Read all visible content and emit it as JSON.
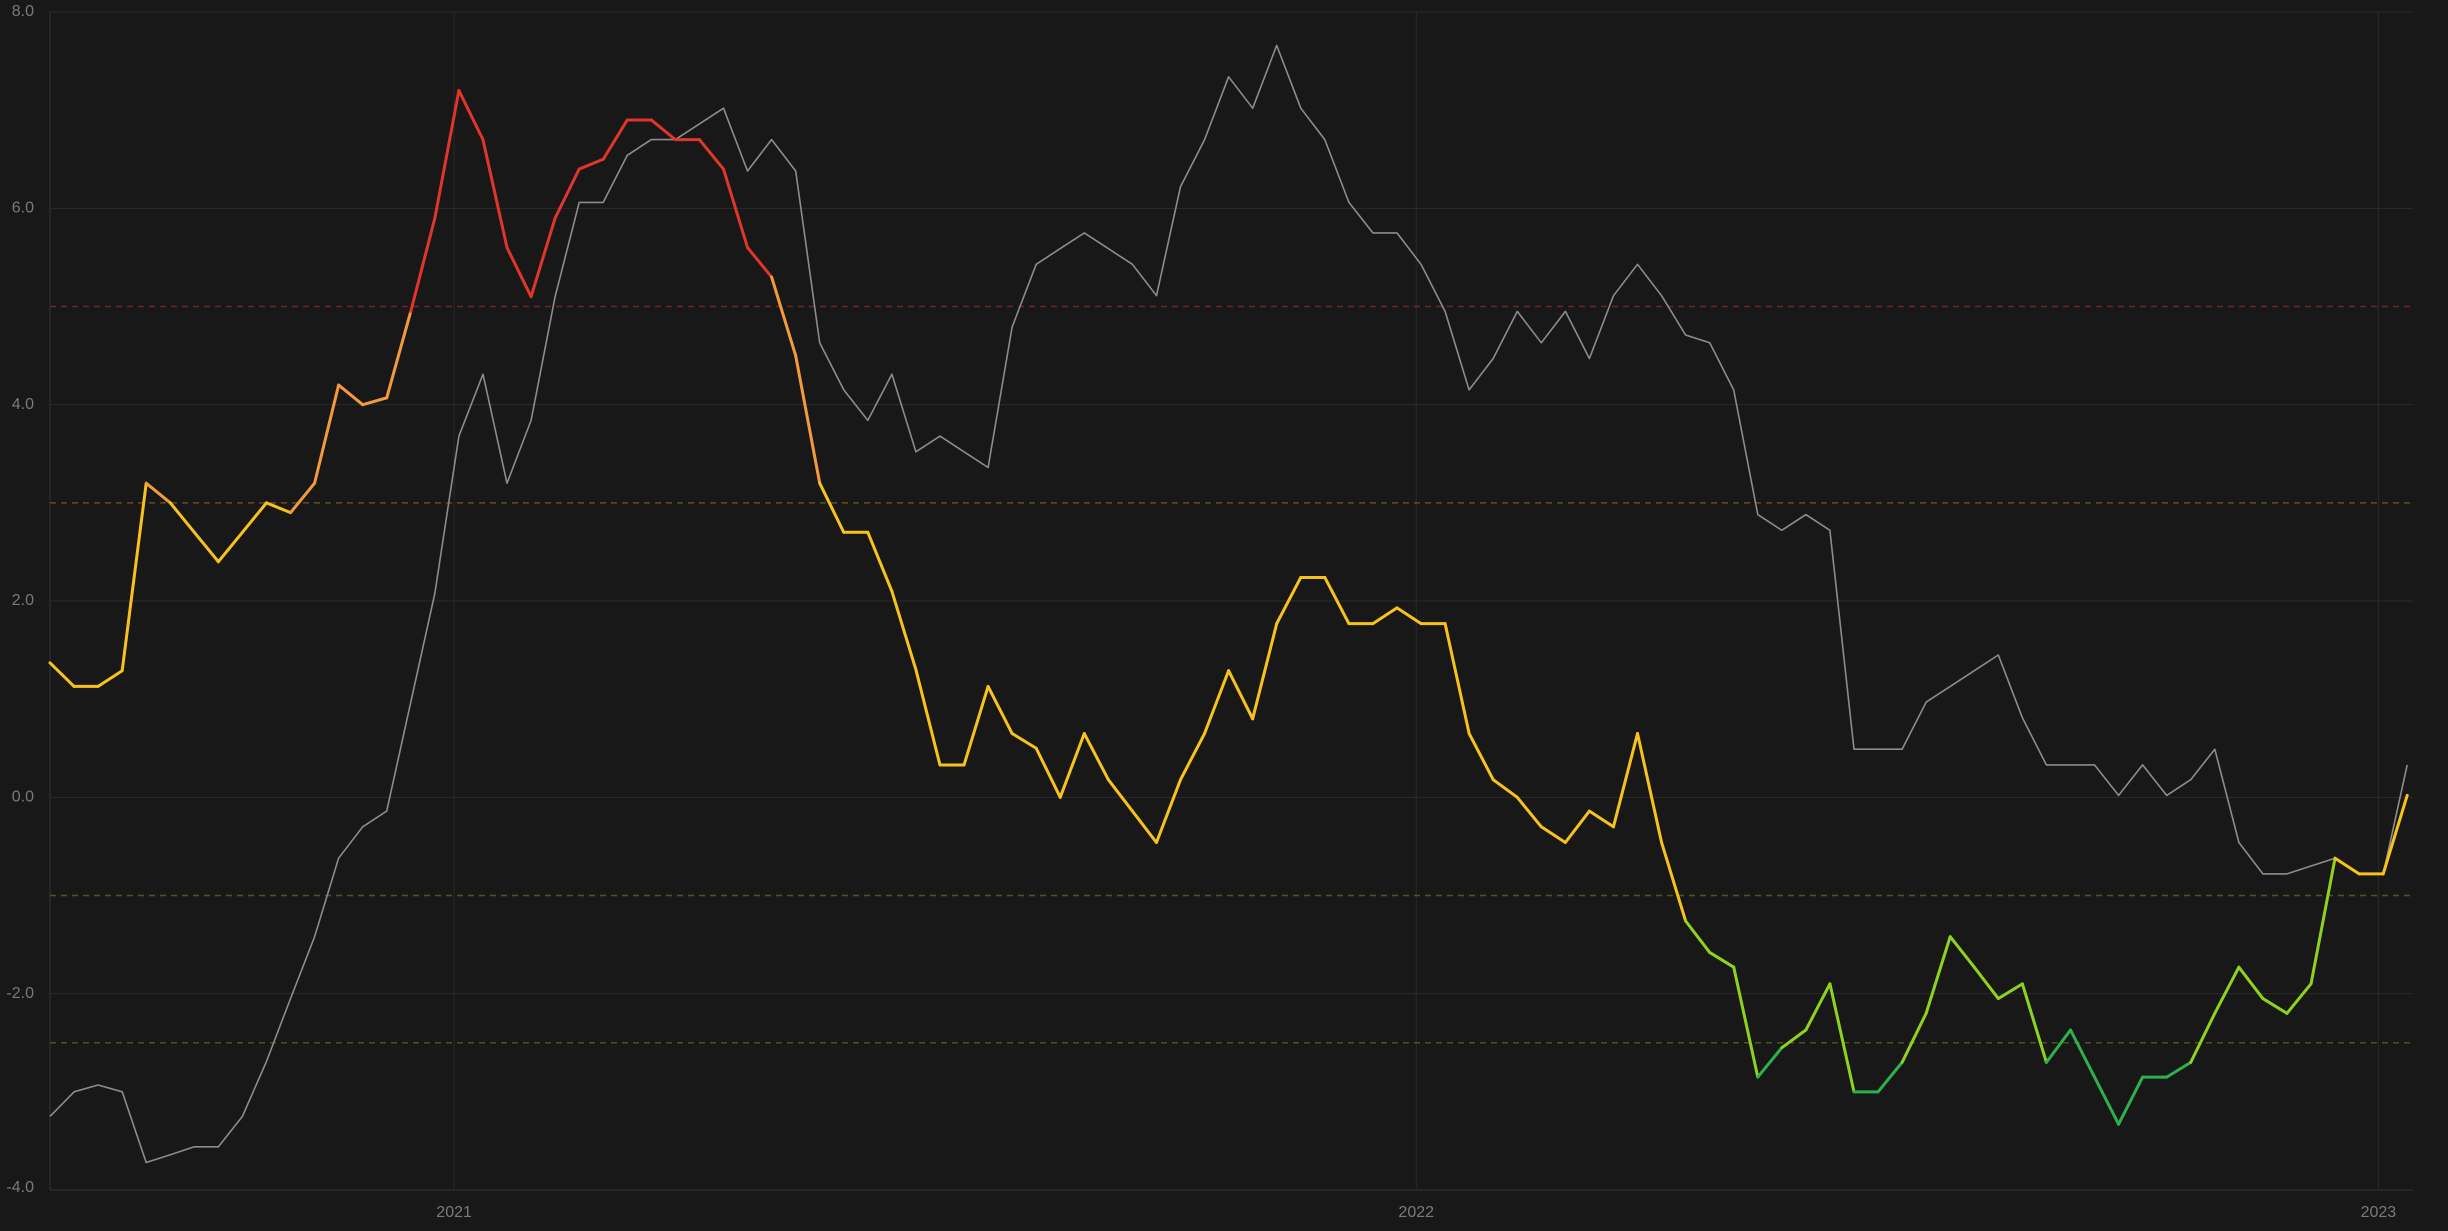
{
  "chart_data": {
    "type": "line",
    "background": "#181818",
    "grid": true,
    "x": [
      2020.58,
      2020.605,
      2020.63,
      2020.655,
      2020.68,
      2020.705,
      2020.73,
      2020.755,
      2020.78,
      2020.805,
      2020.83,
      2020.855,
      2020.88,
      2020.905,
      2020.93,
      2020.955,
      2020.98,
      2021.005,
      2021.03,
      2021.055,
      2021.08,
      2021.105,
      2021.13,
      2021.155,
      2021.18,
      2021.205,
      2021.23,
      2021.255,
      2021.28,
      2021.305,
      2021.33,
      2021.355,
      2021.38,
      2021.405,
      2021.43,
      2021.455,
      2021.48,
      2021.505,
      2021.53,
      2021.555,
      2021.58,
      2021.605,
      2021.63,
      2021.655,
      2021.68,
      2021.705,
      2021.73,
      2021.755,
      2021.78,
      2021.805,
      2021.83,
      2021.855,
      2021.88,
      2021.905,
      2021.93,
      2021.955,
      2021.98,
      2022.005,
      2022.03,
      2022.055,
      2022.08,
      2022.105,
      2022.13,
      2022.155,
      2022.18,
      2022.205,
      2022.23,
      2022.255,
      2022.28,
      2022.305,
      2022.33,
      2022.355,
      2022.38,
      2022.405,
      2022.43,
      2022.455,
      2022.48,
      2022.505,
      2022.53,
      2022.555,
      2022.58,
      2022.605,
      2022.63,
      2022.655,
      2022.68,
      2022.705,
      2022.73,
      2022.755,
      2022.78,
      2022.805,
      2022.83,
      2022.855,
      2022.88,
      2022.905,
      2022.93,
      2022.955,
      2022.98,
      2023.005,
      2023.03
    ],
    "xlim": [
      2020.58,
      2023.036
    ],
    "xticks": [
      2021,
      2022,
      2023
    ],
    "ylim": [
      -4,
      8
    ],
    "yticks": [
      {
        "value": -4,
        "label": "-4.0"
      },
      {
        "value": -2,
        "label": "-2.0"
      },
      {
        "value": 0,
        "label": "0.0"
      },
      {
        "value": 2,
        "label": "2.0"
      },
      {
        "value": 4,
        "label": "4.0"
      },
      {
        "value": 6,
        "label": "6.0"
      },
      {
        "value": 8,
        "label": "8.0"
      }
    ],
    "reference_lines": [
      {
        "value": 5,
        "color": "#6e2424"
      },
      {
        "value": 3,
        "color": "#6b4722"
      },
      {
        "value": -1,
        "color": "#5c4f1f"
      },
      {
        "value": -2.5,
        "color": "#4b5220"
      }
    ],
    "series": [
      {
        "color": "#8c8c8c",
        "values": [
          -3.25,
          -3.0,
          -2.93,
          -3.0,
          -3.72,
          -3.64,
          -3.56,
          -3.56,
          -3.25,
          -2.69,
          -2.05,
          -1.42,
          -0.62,
          -0.3,
          -0.14,
          0.97,
          2.08,
          3.68,
          4.31,
          3.2,
          3.84,
          5.1,
          6.06,
          6.06,
          6.54,
          6.7,
          6.7,
          6.86,
          7.02,
          6.38,
          6.7,
          6.38,
          4.63,
          4.15,
          3.84,
          4.31,
          3.52,
          3.68,
          3.52,
          3.36,
          4.79,
          5.43,
          5.59,
          5.75,
          5.59,
          5.43,
          5.11,
          6.22,
          6.7,
          7.34,
          7.02,
          7.66,
          7.02,
          6.7,
          6.06,
          5.75,
          5.75,
          5.43,
          4.95,
          4.15,
          4.47,
          4.95,
          4.63,
          4.95,
          4.47,
          5.11,
          5.43,
          5.11,
          4.71,
          4.63,
          4.15,
          2.88,
          2.72,
          2.88,
          2.72,
          0.49,
          0.49,
          0.49,
          0.97,
          1.13,
          1.29,
          1.45,
          0.81,
          0.33,
          0.33,
          0.33,
          0.02,
          0.33,
          0.02,
          0.18,
          0.49,
          -0.46,
          -0.78,
          -0.78,
          -0.7,
          -0.62,
          -0.78,
          -0.78,
          0.33
        ]
      },
      {
        "color_scale": [
          {
            "above": 5,
            "color": "#e0352b"
          },
          {
            "above": 3,
            "color": "#f49a3c"
          },
          {
            "above": -1,
            "color": "#f7c21b"
          },
          {
            "above": -2.5,
            "color": "#8fd21e"
          }
        ],
        "color_below": "#2eb04b",
        "values": [
          1.37,
          1.13,
          1.13,
          1.29,
          3.2,
          3.0,
          2.7,
          2.4,
          2.7,
          3.0,
          2.9,
          3.2,
          4.2,
          4.0,
          4.07,
          4.95,
          5.9,
          7.2,
          6.7,
          5.6,
          5.1,
          5.9,
          6.4,
          6.5,
          6.9,
          6.9,
          6.7,
          6.7,
          6.4,
          5.6,
          5.3,
          4.5,
          3.2,
          2.7,
          2.7,
          2.1,
          1.3,
          0.33,
          0.33,
          1.13,
          0.65,
          0.5,
          0,
          0.65,
          0.18,
          -0.14,
          -0.46,
          0.18,
          0.65,
          1.29,
          0.8,
          1.77,
          2.24,
          2.24,
          1.77,
          1.77,
          1.93,
          1.77,
          1.77,
          0.65,
          0.18,
          0,
          -0.3,
          -0.46,
          -0.14,
          -0.3,
          0.65,
          -0.46,
          -1.26,
          -1.58,
          -1.73,
          -2.85,
          -2.55,
          -2.37,
          -1.9,
          -3.0,
          -3.0,
          -2.7,
          -2.2,
          -1.42,
          -1.73,
          -2.05,
          -1.9,
          -2.7,
          -2.37,
          -2.85,
          -3.33,
          -2.85,
          -2.85,
          -2.7,
          -2.2,
          -1.73,
          -2.05,
          -2.2,
          -1.9,
          -0.62,
          -0.78,
          -0.78,
          0.02
        ]
      }
    ]
  }
}
